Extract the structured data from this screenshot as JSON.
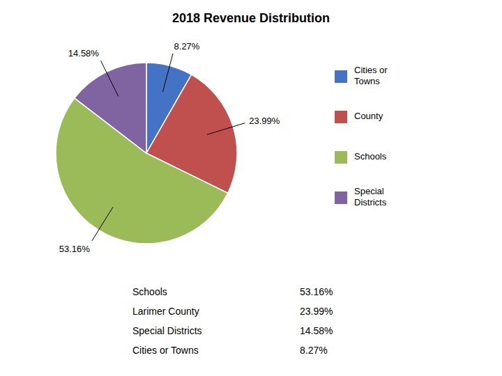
{
  "chart_data": {
    "type": "pie",
    "title": "2018 Revenue Distribution",
    "categories": [
      "Cities or\nTowns",
      "County",
      "Schools",
      "Special\nDistricts"
    ],
    "values": [
      8.27,
      23.99,
      53.16,
      14.58
    ],
    "value_labels": [
      "8.27%",
      "23.99%",
      "53.16%",
      "14.58%"
    ],
    "colors": [
      "#4472C4",
      "#C0504D",
      "#9BBB59",
      "#8064A2"
    ],
    "data_labels": true,
    "legend": "right",
    "table": {
      "labels": [
        "Schools",
        "Larimer County",
        "Special Districts",
        "Cities or Towns"
      ],
      "values": [
        53.16,
        23.99,
        14.58,
        8.27
      ],
      "value_labels": [
        "53.16%",
        "23.99%",
        "14.58%",
        "8.27%"
      ]
    }
  }
}
